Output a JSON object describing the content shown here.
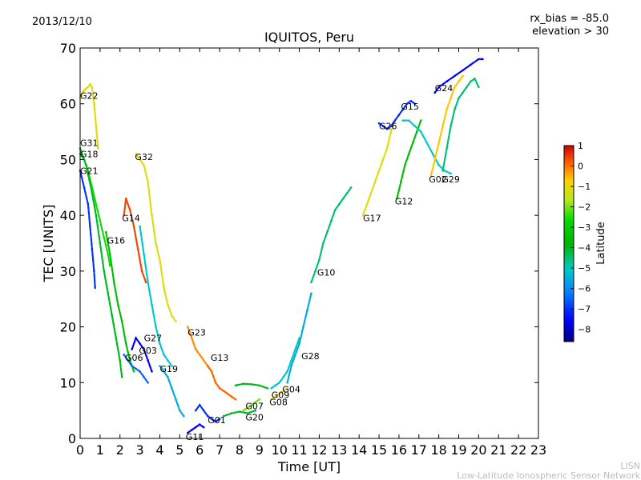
{
  "header": {
    "date": "2013/12/10",
    "bias": "rx_bias = -85.0",
    "elevation": "elevation > 30"
  },
  "footer": {
    "line1": "LISN",
    "line2": "Low-Latitude Ionospheric Sensor Network"
  },
  "colors": {
    "min": "#00007f",
    "c1": "#0000ff",
    "c2": "#0080ff",
    "c3": "#00c8c8",
    "c4": "#00b400",
    "c5": "#00dc00",
    "c6": "#b4e61e",
    "c7": "#ffd200",
    "c8": "#ff6400",
    "max": "#cc0000"
  },
  "chart_data": {
    "type": "scatter",
    "title": "IQUITOS, Peru",
    "xlabel": "Time [UT]",
    "ylabel": "TEC [UNITS]",
    "xlim": [
      0,
      23
    ],
    "ylim": [
      0,
      70
    ],
    "xticks": [
      "0",
      "1",
      "2",
      "3",
      "4",
      "5",
      "6",
      "7",
      "8",
      "9",
      "10",
      "11",
      "12",
      "13",
      "14",
      "15",
      "16",
      "17",
      "18",
      "19",
      "20",
      "21",
      "22",
      "23"
    ],
    "yticks": [
      "0",
      "10",
      "20",
      "30",
      "40",
      "50",
      "60",
      "70"
    ],
    "colorbar": {
      "label": "Latitude",
      "range": [
        -8.6,
        1
      ],
      "ticks": [
        "1",
        "0",
        "−1",
        "−2",
        "−3",
        "−4",
        "−5",
        "−6",
        "−7",
        "−8"
      ]
    },
    "series": [
      {
        "name": "G22",
        "lat": -1.0,
        "label_pos": [
          0.0,
          61.5
        ],
        "points": [
          [
            0.0,
            61
          ],
          [
            0.2,
            62.5
          ],
          [
            0.4,
            63
          ],
          [
            0.5,
            63.5
          ],
          [
            0.6,
            63
          ],
          [
            0.7,
            60
          ],
          [
            0.8,
            56
          ],
          [
            0.9,
            52
          ]
        ]
      },
      {
        "name": "G31",
        "lat": -2.5,
        "label_pos": [
          0.0,
          53
        ],
        "points": [
          [
            0.0,
            51
          ],
          [
            0.2,
            50
          ],
          [
            0.4,
            48
          ],
          [
            0.6,
            45
          ],
          [
            0.8,
            42
          ],
          [
            1.0,
            39
          ],
          [
            1.2,
            36
          ],
          [
            1.4,
            33
          ],
          [
            1.5,
            31
          ]
        ]
      },
      {
        "name": "G18",
        "lat": -4.0,
        "label_pos": [
          0.0,
          51
        ],
        "points": [
          [
            0.0,
            52
          ],
          [
            0.3,
            49
          ],
          [
            0.6,
            44
          ],
          [
            0.8,
            40
          ],
          [
            1.0,
            35
          ],
          [
            1.2,
            30
          ],
          [
            1.4,
            26
          ],
          [
            1.6,
            22
          ],
          [
            1.8,
            18
          ],
          [
            2.0,
            14
          ],
          [
            2.1,
            11
          ]
        ]
      },
      {
        "name": "G21",
        "lat": -7.0,
        "label_pos": [
          0.0,
          48
        ],
        "points": [
          [
            0.0,
            48
          ],
          [
            0.2,
            45
          ],
          [
            0.4,
            42
          ],
          [
            0.5,
            38
          ],
          [
            0.6,
            34
          ],
          [
            0.7,
            30
          ],
          [
            0.75,
            27
          ]
        ]
      },
      {
        "name": "G32",
        "lat": -1.0,
        "label_pos": [
          2.75,
          50.5
        ],
        "points": [
          [
            2.8,
            51
          ],
          [
            3.0,
            50
          ],
          [
            3.2,
            49
          ],
          [
            3.4,
            46
          ],
          [
            3.6,
            40
          ],
          [
            3.8,
            35
          ],
          [
            4.0,
            32
          ],
          [
            4.2,
            27
          ],
          [
            4.4,
            24
          ],
          [
            4.6,
            22
          ],
          [
            4.8,
            21
          ]
        ]
      },
      {
        "name": "G14",
        "lat": 0.5,
        "label_pos": [
          2.1,
          39.5
        ],
        "points": [
          [
            2.2,
            40
          ],
          [
            2.3,
            43
          ],
          [
            2.5,
            41
          ],
          [
            2.7,
            38
          ],
          [
            2.9,
            34
          ],
          [
            3.1,
            30
          ],
          [
            3.3,
            28
          ]
        ]
      },
      {
        "name": "G16",
        "lat": -3.5,
        "label_pos": [
          1.35,
          35.5
        ],
        "points": [
          [
            1.3,
            37
          ],
          [
            1.5,
            33
          ],
          [
            1.7,
            28
          ],
          [
            1.9,
            24
          ],
          [
            2.1,
            21
          ],
          [
            2.3,
            17
          ],
          [
            2.5,
            14
          ],
          [
            2.7,
            12
          ]
        ]
      },
      {
        "name": "G27",
        "lat": -7.5,
        "label_pos": [
          3.2,
          18
        ],
        "points": [
          [
            2.6,
            16
          ],
          [
            2.8,
            18
          ],
          [
            3.0,
            17
          ],
          [
            3.2,
            16
          ],
          [
            3.4,
            14
          ],
          [
            3.6,
            12
          ]
        ]
      },
      {
        "name": "G06",
        "lat": -6.5,
        "label_pos": [
          2.25,
          14.5
        ],
        "points": [
          [
            2.2,
            15
          ],
          [
            2.4,
            14
          ],
          [
            2.6,
            13
          ],
          [
            2.8,
            12.5
          ],
          [
            3.0,
            12
          ],
          [
            3.2,
            11
          ],
          [
            3.4,
            10
          ]
        ]
      },
      {
        "name": "G03",
        "lat": -5.0,
        "label_pos": [
          2.95,
          15.8
        ],
        "points": [
          [
            3.0,
            38
          ],
          [
            3.2,
            33
          ],
          [
            3.4,
            28
          ],
          [
            3.6,
            24
          ],
          [
            3.8,
            20
          ],
          [
            4.0,
            17
          ],
          [
            4.2,
            15
          ],
          [
            4.4,
            14
          ],
          [
            4.6,
            13
          ]
        ]
      },
      {
        "name": "G19",
        "lat": -5.5,
        "label_pos": [
          4.0,
          12.5
        ],
        "points": [
          [
            4.0,
            13
          ],
          [
            4.2,
            12
          ],
          [
            4.4,
            11
          ],
          [
            4.6,
            9
          ],
          [
            4.8,
            7
          ],
          [
            5.0,
            5
          ],
          [
            5.2,
            4
          ]
        ]
      },
      {
        "name": "G23",
        "lat": 0.0,
        "label_pos": [
          5.4,
          19
        ],
        "points": [
          [
            5.4,
            20
          ],
          [
            5.6,
            18
          ],
          [
            5.8,
            16
          ],
          [
            6.0,
            15
          ],
          [
            6.2,
            14
          ],
          [
            6.4,
            13
          ],
          [
            6.6,
            12
          ]
        ]
      },
      {
        "name": "G13",
        "lat": 0.3,
        "label_pos": [
          6.55,
          14.5
        ],
        "points": [
          [
            6.4,
            13
          ],
          [
            6.6,
            12
          ],
          [
            6.8,
            10
          ],
          [
            7.0,
            9
          ],
          [
            7.2,
            8.5
          ],
          [
            7.4,
            8
          ],
          [
            7.6,
            7.5
          ],
          [
            7.8,
            7
          ]
        ]
      },
      {
        "name": "G11",
        "lat": -7.5,
        "label_pos": [
          5.3,
          0.3
        ],
        "points": [
          [
            5.4,
            1
          ],
          [
            5.6,
            1.5
          ],
          [
            5.8,
            2
          ],
          [
            6.0,
            2.5
          ],
          [
            6.2,
            2
          ]
        ]
      },
      {
        "name": "G01",
        "lat": -7.0,
        "label_pos": [
          6.4,
          3.3
        ],
        "points": [
          [
            5.8,
            5
          ],
          [
            6.0,
            6
          ],
          [
            6.2,
            5
          ],
          [
            6.4,
            4
          ],
          [
            6.6,
            3.5
          ],
          [
            6.8,
            3
          ],
          [
            7.0,
            3.5
          ]
        ]
      },
      {
        "name": "G07",
        "lat": -2.0,
        "label_pos": [
          8.3,
          5.8
        ],
        "points": [
          [
            8.2,
            5
          ],
          [
            8.4,
            5.5
          ],
          [
            8.6,
            6
          ],
          [
            8.8,
            6.5
          ],
          [
            9.0,
            7
          ]
        ]
      },
      {
        "name": "G20",
        "lat": -4.0,
        "label_pos": [
          8.3,
          3.8
        ],
        "points": [
          [
            7.2,
            4
          ],
          [
            7.6,
            4.5
          ],
          [
            8.0,
            4.8
          ],
          [
            8.4,
            4.5
          ],
          [
            8.8,
            5
          ]
        ]
      },
      {
        "name": "G09",
        "lat": -4.0,
        "label_pos": [
          9.6,
          7.8
        ],
        "points": [
          [
            7.8,
            9.5
          ],
          [
            8.2,
            9.8
          ],
          [
            8.6,
            9.7
          ],
          [
            9.0,
            9.5
          ],
          [
            9.4,
            9
          ]
        ]
      },
      {
        "name": "G08",
        "lat": -1.0,
        "label_pos": [
          9.5,
          6.5
        ],
        "points": [
          [
            9.6,
            7
          ],
          [
            9.8,
            7.5
          ],
          [
            10.0,
            8
          ],
          [
            10.2,
            8.5
          ],
          [
            10.4,
            9
          ]
        ]
      },
      {
        "name": "G04",
        "lat": -5.0,
        "label_pos": [
          10.15,
          8.8
        ],
        "points": [
          [
            9.6,
            9
          ],
          [
            9.8,
            9.5
          ],
          [
            10.0,
            10
          ],
          [
            10.2,
            11
          ],
          [
            10.4,
            12
          ],
          [
            10.6,
            14
          ],
          [
            10.8,
            16
          ],
          [
            11.0,
            18
          ]
        ]
      },
      {
        "name": "G28",
        "lat": -5.5,
        "label_pos": [
          11.1,
          14.8
        ],
        "points": [
          [
            10.4,
            10
          ],
          [
            10.6,
            13
          ],
          [
            10.8,
            15
          ],
          [
            11.0,
            17
          ],
          [
            11.2,
            20
          ],
          [
            11.4,
            23
          ],
          [
            11.6,
            26
          ]
        ]
      },
      {
        "name": "G10",
        "lat": -4.5,
        "label_pos": [
          11.9,
          29.8
        ],
        "points": [
          [
            11.6,
            28
          ],
          [
            11.8,
            30
          ],
          [
            12.0,
            32
          ],
          [
            12.2,
            35
          ],
          [
            12.4,
            37
          ],
          [
            12.6,
            39
          ],
          [
            12.8,
            41
          ],
          [
            13.0,
            42
          ],
          [
            13.2,
            43
          ],
          [
            13.4,
            44
          ],
          [
            13.6,
            45
          ]
        ]
      },
      {
        "name": "G17",
        "lat": -1.0,
        "label_pos": [
          14.2,
          39.5
        ],
        "points": [
          [
            14.2,
            40
          ],
          [
            14.4,
            42
          ],
          [
            14.6,
            44
          ],
          [
            14.8,
            46
          ],
          [
            15.0,
            48
          ],
          [
            15.2,
            50
          ],
          [
            15.4,
            52
          ],
          [
            15.6,
            55
          ],
          [
            15.8,
            57
          ],
          [
            16.0,
            58
          ]
        ]
      },
      {
        "name": "G12",
        "lat": -3.5,
        "label_pos": [
          15.8,
          42.5
        ],
        "points": [
          [
            15.9,
            43
          ],
          [
            16.1,
            46
          ],
          [
            16.3,
            49
          ],
          [
            16.5,
            51
          ],
          [
            16.7,
            53
          ],
          [
            16.9,
            55
          ],
          [
            17.1,
            57
          ]
        ]
      },
      {
        "name": "G26",
        "lat": -7.0,
        "label_pos": [
          15.0,
          56
        ],
        "points": [
          [
            15.0,
            56.5
          ],
          [
            15.2,
            56
          ],
          [
            15.4,
            55.5
          ],
          [
            15.6,
            56
          ],
          [
            15.8,
            57
          ],
          [
            16.0,
            58
          ],
          [
            16.2,
            59
          ],
          [
            16.4,
            60
          ],
          [
            16.6,
            60.5
          ],
          [
            16.8,
            60
          ]
        ]
      },
      {
        "name": "G15",
        "lat": -5.0,
        "label_pos": [
          16.1,
          59.5
        ],
        "points": [
          [
            16.2,
            57
          ],
          [
            16.5,
            57
          ],
          [
            16.8,
            56
          ],
          [
            17.1,
            55
          ],
          [
            17.4,
            53
          ],
          [
            17.7,
            51
          ],
          [
            18.0,
            49
          ],
          [
            18.3,
            48
          ],
          [
            18.6,
            47.5
          ]
        ]
      },
      {
        "name": "G24",
        "lat": -7.5,
        "label_pos": [
          17.8,
          62.8
        ],
        "points": [
          [
            17.8,
            62
          ],
          [
            18.0,
            63
          ],
          [
            18.4,
            64
          ],
          [
            18.8,
            65
          ],
          [
            19.2,
            66
          ],
          [
            19.6,
            67
          ],
          [
            20.0,
            68
          ],
          [
            20.2,
            68
          ]
        ]
      },
      {
        "name": "G02",
        "lat": -0.5,
        "label_pos": [
          17.5,
          46.5
        ],
        "points": [
          [
            17.6,
            47
          ],
          [
            17.8,
            50
          ],
          [
            18.0,
            53
          ],
          [
            18.2,
            56
          ],
          [
            18.4,
            59
          ],
          [
            18.6,
            61
          ],
          [
            18.8,
            63
          ],
          [
            19.0,
            64
          ],
          [
            19.2,
            65
          ]
        ]
      },
      {
        "name": "G29",
        "lat": -4.5,
        "label_pos": [
          18.15,
          46.5
        ],
        "points": [
          [
            18.2,
            48
          ],
          [
            18.4,
            52
          ],
          [
            18.6,
            56
          ],
          [
            18.8,
            59
          ],
          [
            19.0,
            61
          ],
          [
            19.2,
            62
          ],
          [
            19.4,
            63
          ],
          [
            19.6,
            64
          ],
          [
            19.8,
            64.5
          ],
          [
            20.0,
            63
          ]
        ]
      }
    ]
  }
}
